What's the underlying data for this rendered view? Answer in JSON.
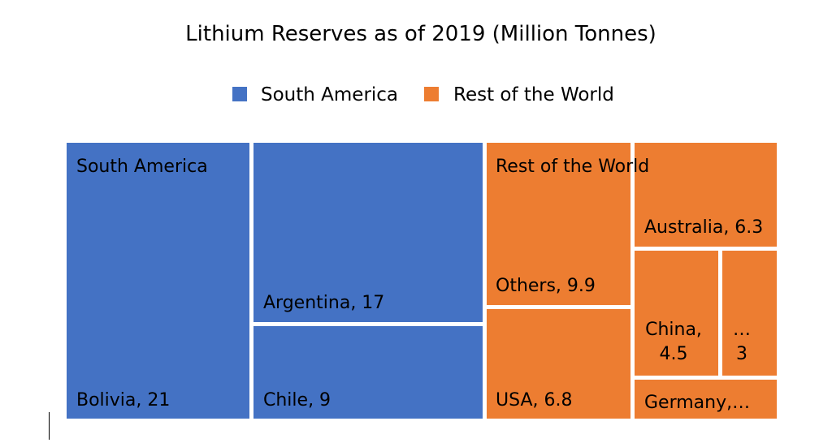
{
  "chart_data": {
    "type": "treemap",
    "title": "Lithium Reserves as of 2019 (Million Tonnes)",
    "legend": {
      "placement": "top",
      "entries": [
        {
          "name": "South America",
          "color": "#4472C4"
        },
        {
          "name": "Rest of the World",
          "color": "#ED7D31"
        }
      ]
    },
    "groups": [
      {
        "name": "South America",
        "color": "#4472C4",
        "items": [
          {
            "label": "Bolivia, 21",
            "value": 21
          },
          {
            "label": "Argentina, 17",
            "value": 17
          },
          {
            "label": "Chile, 9",
            "value": 9
          }
        ]
      },
      {
        "name": "Rest of the World",
        "color": "#ED7D31",
        "items": [
          {
            "label": "Others, 9.9",
            "value": 9.9
          },
          {
            "label": "USA, 6.8",
            "value": 6.8
          },
          {
            "label": "Australia, 6.3",
            "value": 6.3
          },
          {
            "label": "China, 4.5",
            "value": 4.5
          },
          {
            "label": "…\n3",
            "value": 3
          },
          {
            "label": "Germany,…",
            "value": 2.5
          }
        ]
      }
    ]
  }
}
